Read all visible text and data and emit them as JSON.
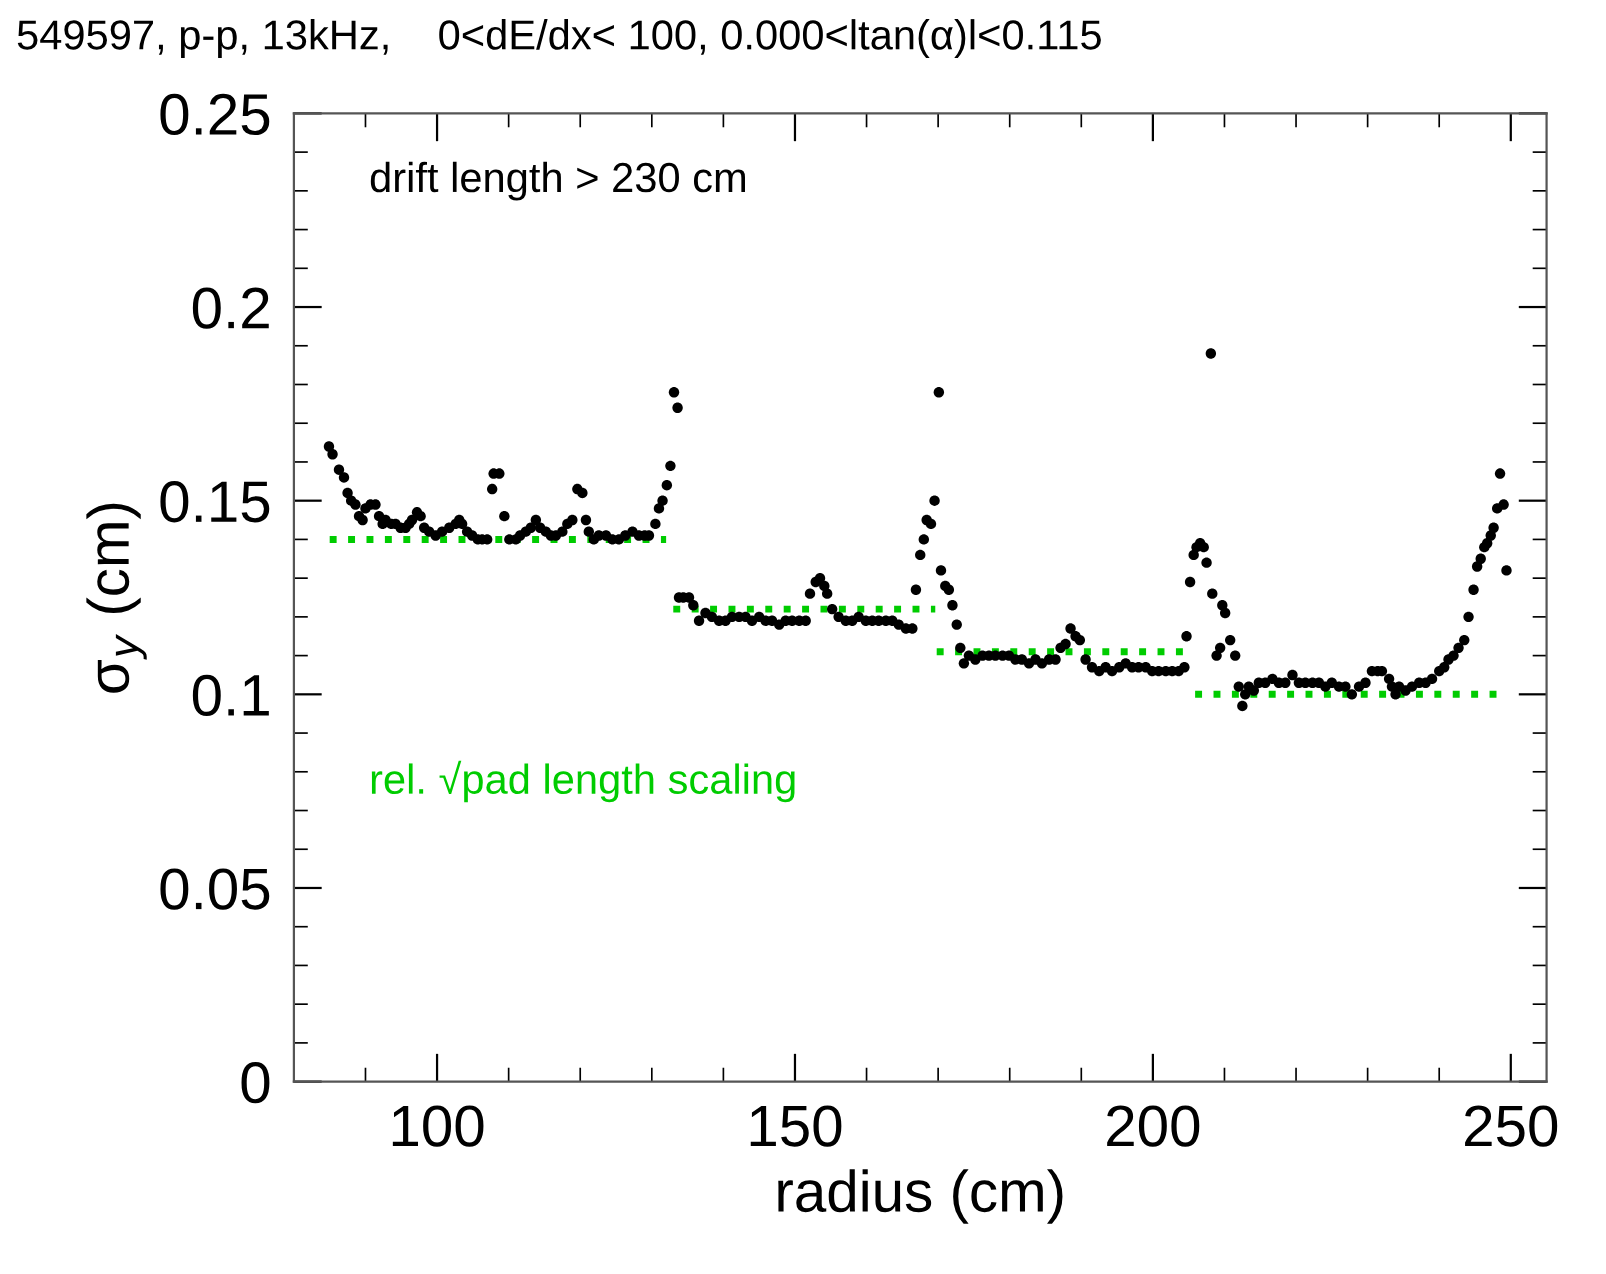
{
  "chart_data": {
    "type": "scatter",
    "title": "549597, p-p, 13kHz,    0<dE/dx< 100, 0.000<ltan(α)l<0.115",
    "xlabel": "radius (cm)",
    "ylabel": "σ$_{y}$ (cm)",
    "annotations": [
      "drift length > 230 cm",
      "rel. √pad length scaling"
    ],
    "xlim": [
      80,
      255
    ],
    "xticks": [
      100,
      150,
      200,
      250
    ],
    "ylim": [
      0,
      0.25
    ],
    "yticks": [
      0,
      0.05,
      0.1,
      0.15,
      0.2,
      0.25
    ],
    "grid": false,
    "legend": false,
    "series": [
      {
        "color": "#000000",
        "marker": "circle",
        "x": [
          84.9,
          85.4,
          86.3,
          87.0,
          87.5,
          88.0,
          88.6,
          89.1,
          89.6,
          90.0,
          90.7,
          91.4,
          91.9,
          92.4,
          92.8,
          93.6,
          94.2,
          94.9,
          95.6,
          96.1,
          96.5,
          97.2,
          97.7,
          98.2,
          98.9,
          99.8,
          100.7,
          101.7,
          102.6,
          103.1,
          103.5,
          104.2,
          104.9,
          105.7,
          106.3,
          107.0,
          107.7,
          107.9,
          108.7,
          109.4,
          110.1,
          111.0,
          111.6,
          112.4,
          113.1,
          113.8,
          114.4,
          115.2,
          115.9,
          116.6,
          117.5,
          118.2,
          118.9,
          119.6,
          120.3,
          120.8,
          121.2,
          121.9,
          122.6,
          123.6,
          124.5,
          125.4,
          126.3,
          127.3,
          128.2,
          129.0,
          129.6,
          130.5,
          131.0,
          131.5,
          132.1,
          132.6,
          133.1,
          133.6,
          133.8,
          134.4,
          135.2,
          135.8,
          136.6,
          137.5,
          138.4,
          139.4,
          140.3,
          141.2,
          142.2,
          143.1,
          144.0,
          145.0,
          145.9,
          146.8,
          147.8,
          148.7,
          149.6,
          150.6,
          151.5,
          152.1,
          152.9,
          153.5,
          154.1,
          154.5,
          155.2,
          156.1,
          157.1,
          158.0,
          158.9,
          159.9,
          160.8,
          161.7,
          162.7,
          163.6,
          164.5,
          165.5,
          166.4,
          166.9,
          167.5,
          168.0,
          168.4,
          169.0,
          169.5,
          170.1,
          170.4,
          171.0,
          171.5,
          172.0,
          172.6,
          173.1,
          173.6,
          174.3,
          175.2,
          176.2,
          177.1,
          178.0,
          179.0,
          179.9,
          180.8,
          181.7,
          182.7,
          183.6,
          184.5,
          185.5,
          186.4,
          187.1,
          187.8,
          188.5,
          189.2,
          189.8,
          190.6,
          191.5,
          192.5,
          193.4,
          194.3,
          195.3,
          196.2,
          197.1,
          198.0,
          199.0,
          199.9,
          200.8,
          201.8,
          202.7,
          203.6,
          204.4,
          204.7,
          205.2,
          205.7,
          206.1,
          206.6,
          207.1,
          207.5,
          208.1,
          208.3,
          208.9,
          209.4,
          209.7,
          210.1,
          210.8,
          211.5,
          212.0,
          212.5,
          212.9,
          213.4,
          214.1,
          214.8,
          215.7,
          216.7,
          217.6,
          218.5,
          219.5,
          220.4,
          221.3,
          222.3,
          223.2,
          224.1,
          225.0,
          226.0,
          226.9,
          227.8,
          228.8,
          229.7,
          230.6,
          231.4,
          232.0,
          233.0,
          233.4,
          233.9,
          234.4,
          235.3,
          236.2,
          237.2,
          238.1,
          239.0,
          240.0,
          240.7,
          241.3,
          242.0,
          242.7,
          243.5,
          244.1,
          244.8,
          245.3,
          245.8,
          246.3,
          246.7,
          247.2,
          247.6,
          248.1,
          248.5,
          249.0,
          249.4
        ],
        "values": [
          0.164,
          0.162,
          0.158,
          0.156,
          0.152,
          0.15,
          0.149,
          0.146,
          0.145,
          0.148,
          0.149,
          0.149,
          0.146,
          0.144,
          0.145,
          0.144,
          0.144,
          0.143,
          0.143,
          0.144,
          0.145,
          0.147,
          0.146,
          0.143,
          0.142,
          0.141,
          0.142,
          0.143,
          0.144,
          0.145,
          0.144,
          0.142,
          0.141,
          0.14,
          0.14,
          0.14,
          0.153,
          0.157,
          0.157,
          0.146,
          0.14,
          0.14,
          0.141,
          0.142,
          0.143,
          0.145,
          0.143,
          0.142,
          0.141,
          0.141,
          0.142,
          0.144,
          0.145,
          0.153,
          0.152,
          0.145,
          0.142,
          0.14,
          0.141,
          0.141,
          0.14,
          0.14,
          0.141,
          0.142,
          0.141,
          0.141,
          0.141,
          0.144,
          0.148,
          0.15,
          0.154,
          0.159,
          0.178,
          0.174,
          0.125,
          0.125,
          0.125,
          0.123,
          0.119,
          0.121,
          0.12,
          0.119,
          0.119,
          0.12,
          0.12,
          0.12,
          0.119,
          0.12,
          0.119,
          0.119,
          0.118,
          0.119,
          0.119,
          0.119,
          0.119,
          0.126,
          0.129,
          0.13,
          0.128,
          0.126,
          0.122,
          0.12,
          0.119,
          0.119,
          0.12,
          0.119,
          0.119,
          0.119,
          0.119,
          0.119,
          0.118,
          0.117,
          0.117,
          0.127,
          0.136,
          0.14,
          0.145,
          0.144,
          0.15,
          0.178,
          0.132,
          0.128,
          0.127,
          0.123,
          0.118,
          0.112,
          0.108,
          0.11,
          0.109,
          0.11,
          0.11,
          0.11,
          0.11,
          0.11,
          0.109,
          0.109,
          0.108,
          0.109,
          0.108,
          0.109,
          0.109,
          0.112,
          0.113,
          0.117,
          0.115,
          0.114,
          0.109,
          0.107,
          0.106,
          0.107,
          0.106,
          0.107,
          0.108,
          0.107,
          0.107,
          0.107,
          0.106,
          0.106,
          0.106,
          0.106,
          0.106,
          0.107,
          0.115,
          0.129,
          0.136,
          0.138,
          0.139,
          0.138,
          0.134,
          0.188,
          0.126,
          0.11,
          0.112,
          0.123,
          0.121,
          0.114,
          0.11,
          0.102,
          0.097,
          0.1,
          0.102,
          0.101,
          0.103,
          0.103,
          0.104,
          0.103,
          0.103,
          0.105,
          0.103,
          0.103,
          0.103,
          0.103,
          0.102,
          0.103,
          0.102,
          0.102,
          0.1,
          0.102,
          0.103,
          0.106,
          0.106,
          0.106,
          0.104,
          0.102,
          0.1,
          0.102,
          0.101,
          0.102,
          0.103,
          0.103,
          0.104,
          0.106,
          0.107,
          0.109,
          0.11,
          0.112,
          0.114,
          0.12,
          0.127,
          0.133,
          0.135,
          0.138,
          0.139,
          0.141,
          0.143,
          0.148,
          0.157,
          0.149,
          0.132
        ]
      },
      {
        "type": "line",
        "color": "#00cc00",
        "line_style": "dotted",
        "marker": "none",
        "x": [
          85,
          132
        ],
        "values": [
          0.14,
          0.14
        ]
      },
      {
        "type": "line",
        "color": "#00cc00",
        "line_style": "dotted",
        "marker": "none",
        "x": [
          133,
          169.6
        ],
        "values": [
          0.122,
          0.122
        ]
      },
      {
        "type": "line",
        "color": "#00cc00",
        "line_style": "dotted",
        "marker": "none",
        "x": [
          169.8,
          204.7
        ],
        "values": [
          0.111,
          0.111
        ]
      },
      {
        "type": "line",
        "color": "#00cc00",
        "line_style": "dotted",
        "marker": "none",
        "x": [
          205.9,
          249.2
        ],
        "values": [
          0.1,
          0.1
        ]
      }
    ]
  }
}
